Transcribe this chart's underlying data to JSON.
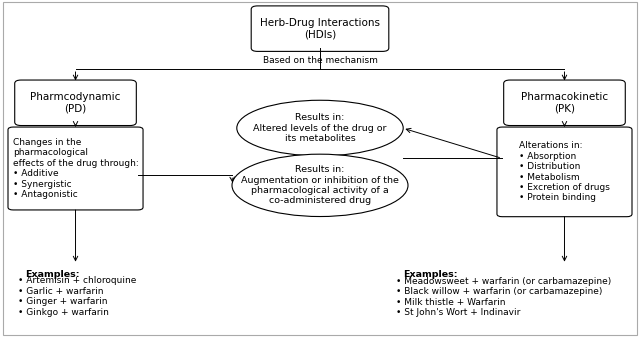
{
  "title": "Herb-Drug Interactions\n(HDIs)",
  "pd_label": "Pharmcodynamic\n(PD)",
  "pk_label": "Pharmacokinetic\n(PK)",
  "pd_changes_label": "Changes in the\npharmacological\neffects of the drug through:\n• Additive\n• Synergistic\n• Antagonistic",
  "pk_alterations_label": "Alterations in:\n• Absorption\n• Distribution\n• Metabolism\n• Excretion of drugs\n• Protein binding",
  "ellipse1_label": "Results in:\nAltered levels of the drug or\nits metabolites",
  "ellipse2_label": "Results in:\nAugmentation or inhibition of the\npharmacological activity of a\nco-administered drug",
  "based_on_mechanism": "Based on the mechanism",
  "pd_examples_title": "Examples:",
  "pd_examples_body": "• Artemisin + chloroquine\n• Garlic + warfarin\n• Ginger + warfarin\n• Ginkgo + warfarin",
  "pk_examples_title": "Examples:",
  "pk_examples_body": "• Meadowsweet + warfarin (or carbamazepine)\n• Black willow + warfarin (or carbamazepine)\n• Milk thistle + Warfarin\n• St John's Wort + Indinavir",
  "bg_color": "#ffffff",
  "box_color": "#ffffff",
  "box_edge_color": "#000000",
  "text_color": "#000000",
  "arrow_color": "#000000",
  "fig_border_color": "#aaaaaa"
}
